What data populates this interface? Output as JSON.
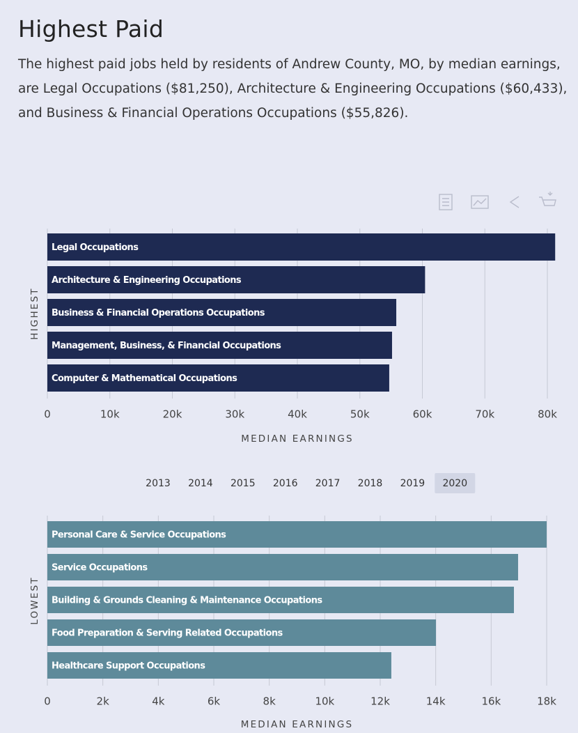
{
  "header": {
    "title": "Highest Paid",
    "description": "The highest paid jobs held by residents of Andrew County, MO, by median earnings, are Legal Occupations ($81,250), Architecture & Engineering Occupations ($60,433), and Business & Financial Operations Occupations ($55,826)."
  },
  "year_selector": {
    "years": [
      "2013",
      "2014",
      "2015",
      "2016",
      "2017",
      "2018",
      "2019",
      "2020"
    ],
    "selected": "2020"
  },
  "chart_data": [
    {
      "type": "bar",
      "orientation": "horizontal",
      "ylabel": "HIGHEST",
      "xlabel": "MEDIAN EARNINGS",
      "color": "#1e2a52",
      "grid": true,
      "categories": [
        "Legal Occupations",
        "Architecture & Engineering Occupations",
        "Business & Financial Operations Occupations",
        "Management, Business, & Financial Occupations",
        "Computer & Mathematical Occupations"
      ],
      "values": [
        81250,
        60433,
        55826,
        55150,
        54700
      ],
      "xlim": [
        0,
        80000
      ],
      "xticks": [
        0,
        {
          "value": 10000,
          "label": "10k"
        },
        {
          "value": 20000,
          "label": "20k"
        },
        {
          "value": 30000,
          "label": "30k"
        },
        {
          "value": 40000,
          "label": "40k"
        },
        {
          "value": 50000,
          "label": "50k"
        },
        {
          "value": 60000,
          "label": "60k"
        },
        {
          "value": 70000,
          "label": "70k"
        },
        {
          "value": 80000,
          "label": "80k"
        }
      ]
    },
    {
      "type": "bar",
      "orientation": "horizontal",
      "ylabel": "LOWEST",
      "xlabel": "MEDIAN EARNINGS",
      "color": "#5e8a9a",
      "grid": true,
      "categories": [
        "Personal Care & Service Occupations",
        "Service Occupations",
        "Building & Grounds Cleaning & Maintenance Occupations",
        "Food Preparation & Serving Related Occupations",
        "Healthcare Support Occupations"
      ],
      "values": [
        18000,
        16970,
        16820,
        14010,
        12400
      ],
      "xlim": [
        0,
        18000
      ],
      "xticks": [
        0,
        {
          "value": 2000,
          "label": "2k"
        },
        {
          "value": 4000,
          "label": "4k"
        },
        {
          "value": 6000,
          "label": "6k"
        },
        {
          "value": 8000,
          "label": "8k"
        },
        {
          "value": 10000,
          "label": "10k"
        },
        {
          "value": 12000,
          "label": "12k"
        },
        {
          "value": 14000,
          "label": "14k"
        },
        {
          "value": 16000,
          "label": "16k"
        },
        {
          "value": 18000,
          "label": "18k"
        }
      ]
    }
  ]
}
